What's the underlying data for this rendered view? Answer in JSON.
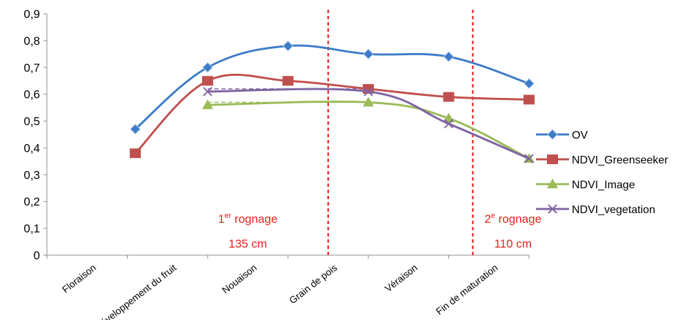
{
  "chart_data": {
    "type": "line",
    "categories": [
      "Floraison",
      "Développement du fruit",
      "Nouaison",
      "Grain de pois",
      "Véraison",
      "Fin de maturation"
    ],
    "y_ticks": [
      "0",
      "0,1",
      "0,2",
      "0,3",
      "0,4",
      "0,5",
      "0,6",
      "0,7",
      "0,8",
      "0,9"
    ],
    "ylim": [
      0,
      0.9
    ],
    "grid": false,
    "legend_position": "right",
    "series": [
      {
        "name": "OV",
        "color": "#3d7cc9",
        "marker": "diamond",
        "x": [
          1.6,
          2.5,
          3.5,
          4.5,
          5.5,
          6.5
        ],
        "y": [
          0.47,
          0.7,
          0.78,
          0.75,
          0.74,
          0.64
        ]
      },
      {
        "name": "NDVI_Greenseeker",
        "color": "#c0504d",
        "marker": "square",
        "x": [
          1.6,
          2.5,
          3.5,
          4.5,
          5.5,
          6.5
        ],
        "y": [
          0.38,
          0.65,
          0.65,
          0.62,
          0.59,
          0.58
        ]
      },
      {
        "name": "NDVI_Image",
        "color": "#9bbb59",
        "marker": "triangle",
        "x": [
          2.5,
          4.5,
          5.5,
          6.5
        ],
        "y": [
          0.56,
          0.57,
          0.51,
          0.36
        ]
      },
      {
        "name": "NDVI_vegetation",
        "color": "#8064a2",
        "marker": "x",
        "x": [
          2.5,
          4.5,
          5.5,
          6.5
        ],
        "y": [
          0.61,
          0.61,
          0.49,
          0.36
        ]
      }
    ],
    "dashed_connectors": [
      {
        "series": "NDVI_vegetation",
        "x": [
          2.5,
          4.5
        ],
        "y": [
          0.62,
          0.62
        ]
      },
      {
        "series": "NDVI_Image",
        "x": [
          2.5,
          4.5
        ],
        "y": [
          0.57,
          0.57
        ]
      }
    ],
    "vertical_markers": [
      {
        "x": 4.0,
        "color": "#e8211d"
      },
      {
        "x": 5.8,
        "color": "#e8211d"
      }
    ],
    "annotations": [
      {
        "prefix": "1",
        "sup": "er",
        "text": " rognage",
        "value": "135 cm",
        "x": 3.0
      },
      {
        "prefix": "2",
        "sup": "e",
        "text": " rognage",
        "value": "110 cm",
        "x": 6.3
      }
    ]
  }
}
